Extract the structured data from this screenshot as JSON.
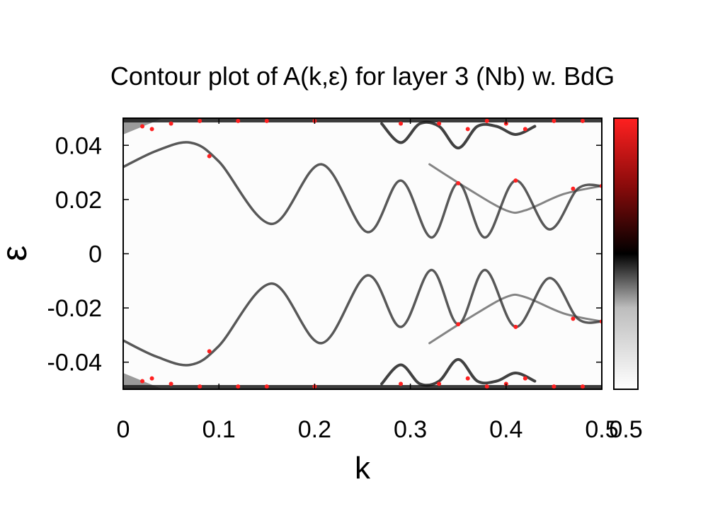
{
  "chart_data": {
    "type": "heatmap",
    "title": "Contour plot of A(k,ε)  for layer 3 (Nb) w. BdG",
    "xlabel": "k",
    "ylabel": "ε",
    "xlim": [
      0,
      0.5
    ],
    "ylim": [
      -0.05,
      0.05
    ],
    "xticks": [
      {
        "value": 0,
        "label": "0"
      },
      {
        "value": 0.1,
        "label": "0.1"
      },
      {
        "value": 0.2,
        "label": "0.2"
      },
      {
        "value": 0.3,
        "label": "0.3"
      },
      {
        "value": 0.4,
        "label": "0.4"
      },
      {
        "value": 0.5,
        "label": "0.5"
      }
    ],
    "yticks": [
      {
        "value": 0.04,
        "label": "0.04"
      },
      {
        "value": 0.02,
        "label": "0.02"
      },
      {
        "value": 0,
        "label": "0"
      },
      {
        "value": -0.02,
        "label": "-0.02"
      },
      {
        "value": -0.04,
        "label": "-0.04"
      }
    ],
    "colorbar": {
      "range": [
        0,
        0.5
      ],
      "max_label": "0.5",
      "colors": [
        "#ffffff",
        "#000000",
        "#ff2020"
      ]
    },
    "bands": {
      "upper": [
        [
          0,
          0.032
        ],
        [
          0.035,
          0.038
        ],
        [
          0.07,
          0.041
        ],
        [
          0.1,
          0.034
        ],
        [
          0.155,
          0.011
        ],
        [
          0.207,
          0.033
        ],
        [
          0.255,
          0.008
        ],
        [
          0.29,
          0.027
        ],
        [
          0.322,
          0.006
        ],
        [
          0.35,
          0.026
        ],
        [
          0.378,
          0.006
        ],
        [
          0.41,
          0.027
        ],
        [
          0.445,
          0.009
        ],
        [
          0.475,
          0.024
        ],
        [
          0.5,
          0.025
        ]
      ],
      "upper_branch": [
        [
          0.32,
          0.033
        ],
        [
          0.36,
          0.024
        ],
        [
          0.4,
          0.016
        ],
        [
          0.42,
          0.016
        ],
        [
          0.46,
          0.022
        ],
        [
          0.5,
          0.025
        ]
      ],
      "edge_upper": [
        [
          0.27,
          0.048
        ],
        [
          0.29,
          0.041
        ],
        [
          0.31,
          0.048
        ],
        [
          0.33,
          0.047
        ],
        [
          0.35,
          0.039
        ],
        [
          0.37,
          0.047
        ],
        [
          0.39,
          0.047
        ],
        [
          0.41,
          0.044
        ],
        [
          0.43,
          0.047
        ]
      ]
    }
  }
}
